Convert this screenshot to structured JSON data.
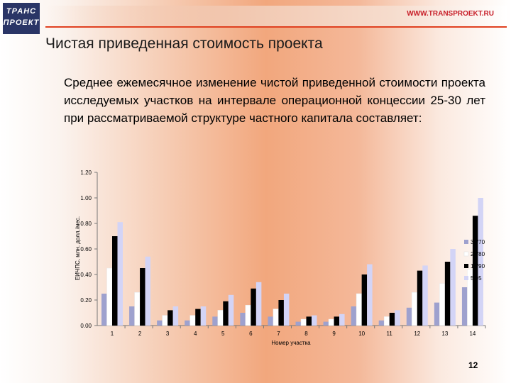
{
  "header": {
    "site_url": "WWW.TRANSPROEKT.RU",
    "logo_line1": "ТРАНС",
    "logo_line2": "ПРОЕКТ"
  },
  "slide": {
    "title": "Чистая приведенная стоимость проекта",
    "text": "Среднее ежемесячное изменение чистой приведенной стоимости проекта исследуемых участков на интервале операционной концессии 25-30 лет при рассматриваемой структуре частного капитала составляет:",
    "page_number": "12"
  },
  "colors": {
    "s1": "#9ea1ce",
    "s2": "#ffffff",
    "s3": "#000000",
    "s4": "#d3d4f6"
  },
  "chart_data": {
    "type": "bar",
    "xlabel": "Номер участка",
    "ylabel": "ЕИЧПС, млн. долл./мес.",
    "ylim": [
      0,
      1.2
    ],
    "yticks": [
      "0.00",
      "0.20",
      "0.40",
      "0.60",
      "0.80",
      "1.00",
      "1.20"
    ],
    "grid": false,
    "legend_position": "right",
    "categories": [
      "1",
      "2",
      "3",
      "4",
      "5",
      "6",
      "7",
      "8",
      "9",
      "10",
      "11",
      "12",
      "13",
      "14"
    ],
    "series": [
      {
        "name": "30/70",
        "values": [
          0.25,
          0.15,
          0.04,
          0.04,
          0.07,
          0.1,
          0.07,
          0.03,
          0.03,
          0.15,
          0.04,
          0.14,
          0.18,
          0.3
        ]
      },
      {
        "name": "20/80",
        "values": [
          0.45,
          0.26,
          0.08,
          0.08,
          0.12,
          0.16,
          0.13,
          0.05,
          0.05,
          0.25,
          0.07,
          0.26,
          0.33,
          0.44
        ]
      },
      {
        "name": "10/90",
        "values": [
          0.7,
          0.45,
          0.12,
          0.13,
          0.19,
          0.29,
          0.2,
          0.07,
          0.07,
          0.4,
          0.1,
          0.43,
          0.5,
          0.86
        ]
      },
      {
        "name": "5/95",
        "values": [
          0.81,
          0.54,
          0.15,
          0.15,
          0.24,
          0.34,
          0.25,
          0.08,
          0.09,
          0.48,
          0.12,
          0.47,
          0.6,
          1.0
        ]
      }
    ]
  }
}
